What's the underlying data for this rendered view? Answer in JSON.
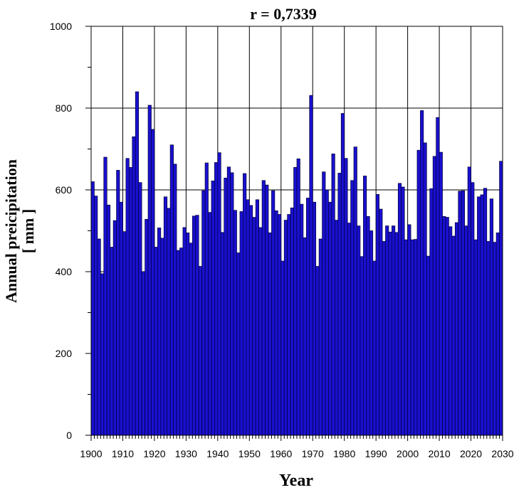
{
  "chart_data": {
    "type": "bar",
    "title": "r = 0,7339",
    "xlabel": "Year",
    "ylabel": [
      "Annual preicipitation",
      "[ mm ]"
    ],
    "xlim": [
      1900,
      2030
    ],
    "ylim": [
      0,
      1000
    ],
    "xticks": [
      1900,
      1910,
      1920,
      1930,
      1940,
      1950,
      1960,
      1970,
      1980,
      1990,
      2000,
      2010,
      2020,
      2030
    ],
    "yticks": [
      0,
      200,
      400,
      600,
      800,
      1000
    ],
    "grid": true,
    "colors": {
      "bar": "#1a10d0",
      "bar_edge": "#000033"
    },
    "x": [
      1901,
      1902,
      1903,
      1904,
      1905,
      1906,
      1907,
      1908,
      1909,
      1910,
      1911,
      1912,
      1913,
      1914,
      1915,
      1916,
      1917,
      1918,
      1919,
      1920,
      1921,
      1922,
      1923,
      1924,
      1925,
      1926,
      1927,
      1928,
      1929,
      1930,
      1931,
      1932,
      1933,
      1934,
      1935,
      1936,
      1937,
      1938,
      1939,
      1940,
      1941,
      1942,
      1943,
      1944,
      1945,
      1946,
      1947,
      1948,
      1949,
      1950,
      1951,
      1952,
      1953,
      1954,
      1955,
      1956,
      1957,
      1958,
      1959,
      1960,
      1961,
      1962,
      1963,
      1964,
      1965,
      1966,
      1967,
      1968,
      1969,
      1970,
      1971,
      1972,
      1973,
      1974,
      1975,
      1976,
      1977,
      1978,
      1979,
      1980,
      1981,
      1982,
      1983,
      1984,
      1985,
      1986,
      1987,
      1988,
      1989,
      1990,
      1991,
      1992,
      1993,
      1994,
      1995,
      1996,
      1997,
      1998,
      1999,
      2000,
      2001,
      2002,
      2003,
      2004,
      2005,
      2006,
      2007,
      2008,
      2009,
      2010,
      2011,
      2012,
      2013,
      2014,
      2015,
      2016,
      2017,
      2018,
      2019,
      2020,
      2021,
      2022,
      2023,
      2024,
      2025,
      2026,
      2027,
      2028,
      2029,
      2030
    ],
    "values": [
      620,
      585,
      480,
      395,
      680,
      563,
      460,
      525,
      648,
      570,
      498,
      677,
      655,
      730,
      840,
      618,
      400,
      528,
      807,
      748,
      460,
      507,
      482,
      583,
      555,
      710,
      663,
      452,
      458,
      508,
      495,
      470,
      536,
      538,
      413,
      598,
      666,
      545,
      622,
      667,
      691,
      496,
      629,
      656,
      642,
      550,
      446,
      547,
      640,
      576,
      562,
      533,
      576,
      508,
      623,
      612,
      495,
      598,
      549,
      540,
      426,
      526,
      540,
      556,
      655,
      676,
      565,
      483,
      580,
      831,
      570,
      413,
      480,
      644,
      600,
      570,
      688,
      526,
      641,
      787,
      677,
      519,
      623,
      705,
      512,
      437,
      634,
      535,
      500,
      426,
      589,
      553,
      474,
      512,
      497,
      512,
      496,
      616,
      607,
      478,
      515,
      478,
      479,
      697,
      794,
      715,
      438,
      603,
      682,
      777,
      692,
      535,
      533,
      510,
      487,
      520,
      597,
      598,
      512,
      656,
      618,
      478,
      583,
      588,
      604,
      474,
      578,
      472,
      495,
      670
    ]
  }
}
